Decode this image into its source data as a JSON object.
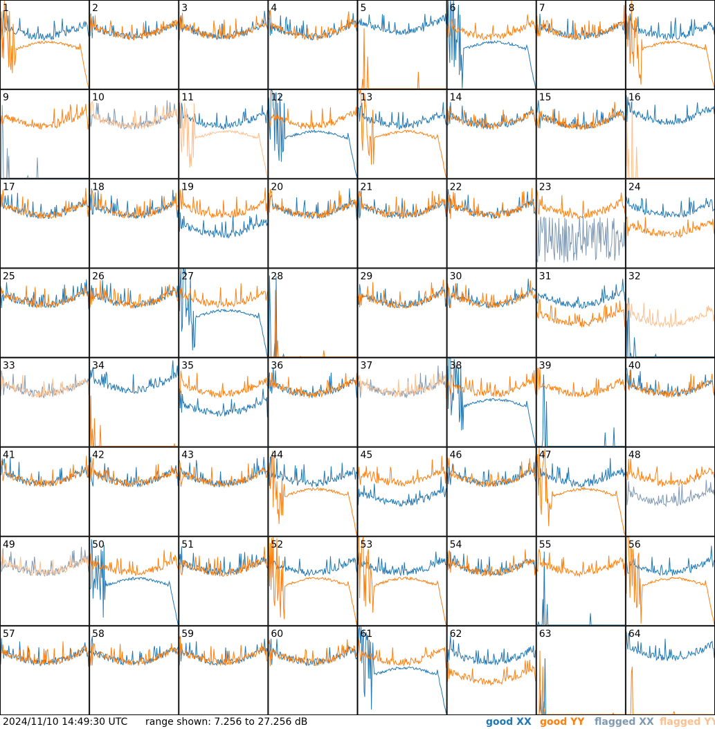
{
  "footer": {
    "timestamp": "2024/11/10 14:49:30 UTC",
    "range_text": "range shown: 7.256 to 27.256 dB"
  },
  "legend": {
    "good_xx": "good XX",
    "good_yy": "good YY",
    "flagged_xx": "flagged XX",
    "flagged_yy": "flagged YY"
  },
  "colors": {
    "good_xx": "#1f77b4",
    "good_yy": "#ff7f0e",
    "flagged_xx": "#7f99b2",
    "flagged_yy": "#ffbf8c",
    "grid": "#000000",
    "background": "#ffffff"
  },
  "chart_data": {
    "type": "line",
    "layout": "8x8 small multiples",
    "ylim": [
      7.256,
      27.256
    ],
    "yunit": "dB",
    "panels": [
      {
        "label": "1",
        "xx": "good",
        "yy": "good",
        "xx_kind": "normal",
        "yy_kind": "arch"
      },
      {
        "label": "2",
        "xx": "good",
        "yy": "good",
        "xx_kind": "normal",
        "yy_kind": "normal"
      },
      {
        "label": "3",
        "xx": "good",
        "yy": "good",
        "xx_kind": "normal",
        "yy_kind": "normal"
      },
      {
        "label": "4",
        "xx": "good",
        "yy": "good",
        "xx_kind": "normal",
        "yy_kind": "normal"
      },
      {
        "label": "5",
        "xx": "good",
        "yy": "good",
        "xx_kind": "high",
        "yy_kind": "dead"
      },
      {
        "label": "6",
        "xx": "good",
        "yy": "good",
        "xx_kind": "arch",
        "yy_kind": "normal"
      },
      {
        "label": "7",
        "xx": "good",
        "yy": "good",
        "xx_kind": "normal",
        "yy_kind": "normal"
      },
      {
        "label": "8",
        "xx": "good",
        "yy": "good",
        "xx_kind": "normal",
        "yy_kind": "arch"
      },
      {
        "label": "9",
        "xx": "flagged",
        "yy": "good",
        "xx_kind": "dead",
        "yy_kind": "normal"
      },
      {
        "label": "10",
        "xx": "flagged",
        "yy": "flagged",
        "xx_kind": "normal",
        "yy_kind": "normal"
      },
      {
        "label": "11",
        "xx": "good",
        "yy": "flagged",
        "xx_kind": "normal",
        "yy_kind": "arch"
      },
      {
        "label": "12",
        "xx": "good",
        "yy": "good",
        "xx_kind": "arch",
        "yy_kind": "normal"
      },
      {
        "label": "13",
        "xx": "good",
        "yy": "good",
        "xx_kind": "normal",
        "yy_kind": "arch"
      },
      {
        "label": "14",
        "xx": "good",
        "yy": "good",
        "xx_kind": "normal",
        "yy_kind": "normal"
      },
      {
        "label": "15",
        "xx": "good",
        "yy": "good",
        "xx_kind": "normal",
        "yy_kind": "normal"
      },
      {
        "label": "16",
        "xx": "good",
        "yy": "flagged",
        "xx_kind": "high",
        "yy_kind": "dead"
      },
      {
        "label": "17",
        "xx": "good",
        "yy": "good",
        "xx_kind": "normal",
        "yy_kind": "normal"
      },
      {
        "label": "18",
        "xx": "good",
        "yy": "good",
        "xx_kind": "normal",
        "yy_kind": "normal"
      },
      {
        "label": "19",
        "xx": "good",
        "yy": "good",
        "xx_kind": "low",
        "yy_kind": "normal"
      },
      {
        "label": "20",
        "xx": "good",
        "yy": "good",
        "xx_kind": "normal",
        "yy_kind": "normal"
      },
      {
        "label": "21",
        "xx": "good",
        "yy": "good",
        "xx_kind": "normal",
        "yy_kind": "normal"
      },
      {
        "label": "22",
        "xx": "good",
        "yy": "good",
        "xx_kind": "normal",
        "yy_kind": "normal"
      },
      {
        "label": "23",
        "xx": "flagged",
        "yy": "good",
        "xx_kind": "noisy",
        "yy_kind": "normal"
      },
      {
        "label": "24",
        "xx": "good",
        "yy": "good",
        "xx_kind": "normal",
        "yy_kind": "low"
      },
      {
        "label": "25",
        "xx": "good",
        "yy": "good",
        "xx_kind": "normal",
        "yy_kind": "normal"
      },
      {
        "label": "26",
        "xx": "good",
        "yy": "good",
        "xx_kind": "normal",
        "yy_kind": "normal"
      },
      {
        "label": "27",
        "xx": "good",
        "yy": "good",
        "xx_kind": "arch",
        "yy_kind": "normal"
      },
      {
        "label": "28",
        "xx": "good",
        "yy": "good",
        "xx_kind": "dead",
        "yy_kind": "dead"
      },
      {
        "label": "29",
        "xx": "good",
        "yy": "good",
        "xx_kind": "normal",
        "yy_kind": "normal"
      },
      {
        "label": "30",
        "xx": "good",
        "yy": "good",
        "xx_kind": "normal",
        "yy_kind": "normal"
      },
      {
        "label": "31",
        "xx": "good",
        "yy": "good",
        "xx_kind": "normal",
        "yy_kind": "low"
      },
      {
        "label": "32",
        "xx": "good",
        "yy": "flagged",
        "xx_kind": "dead",
        "yy_kind": "low"
      },
      {
        "label": "33",
        "xx": "flagged",
        "yy": "flagged",
        "xx_kind": "normal",
        "yy_kind": "normal"
      },
      {
        "label": "34",
        "xx": "good",
        "yy": "good",
        "xx_kind": "high",
        "yy_kind": "dead"
      },
      {
        "label": "35",
        "xx": "good",
        "yy": "good",
        "xx_kind": "low",
        "yy_kind": "normal"
      },
      {
        "label": "36",
        "xx": "good",
        "yy": "good",
        "xx_kind": "normal",
        "yy_kind": "normal"
      },
      {
        "label": "37",
        "xx": "flagged",
        "yy": "flagged",
        "xx_kind": "normal",
        "yy_kind": "normal"
      },
      {
        "label": "38",
        "xx": "good",
        "yy": "good",
        "xx_kind": "arch",
        "yy_kind": "normal"
      },
      {
        "label": "39",
        "xx": "good",
        "yy": "good",
        "xx_kind": "dead",
        "yy_kind": "normal"
      },
      {
        "label": "40",
        "xx": "good",
        "yy": "good",
        "xx_kind": "normal",
        "yy_kind": "normal"
      },
      {
        "label": "41",
        "xx": "good",
        "yy": "good",
        "xx_kind": "normal",
        "yy_kind": "normal"
      },
      {
        "label": "42",
        "xx": "good",
        "yy": "good",
        "xx_kind": "normal",
        "yy_kind": "normal"
      },
      {
        "label": "43",
        "xx": "good",
        "yy": "good",
        "xx_kind": "normal",
        "yy_kind": "normal"
      },
      {
        "label": "44",
        "xx": "good",
        "yy": "good",
        "xx_kind": "normal",
        "yy_kind": "arch"
      },
      {
        "label": "45",
        "xx": "good",
        "yy": "good",
        "xx_kind": "low",
        "yy_kind": "normal"
      },
      {
        "label": "46",
        "xx": "good",
        "yy": "good",
        "xx_kind": "normal",
        "yy_kind": "normal"
      },
      {
        "label": "47",
        "xx": "good",
        "yy": "good",
        "xx_kind": "normal",
        "yy_kind": "arch"
      },
      {
        "label": "48",
        "xx": "flagged",
        "yy": "good",
        "xx_kind": "low",
        "yy_kind": "normal"
      },
      {
        "label": "49",
        "xx": "flagged",
        "yy": "flagged",
        "xx_kind": "normal",
        "yy_kind": "normal"
      },
      {
        "label": "50",
        "xx": "good",
        "yy": "good",
        "xx_kind": "arch",
        "yy_kind": "normal"
      },
      {
        "label": "51",
        "xx": "good",
        "yy": "good",
        "xx_kind": "normal",
        "yy_kind": "normal"
      },
      {
        "label": "52",
        "xx": "good",
        "yy": "good",
        "xx_kind": "normal",
        "yy_kind": "arch"
      },
      {
        "label": "53",
        "xx": "good",
        "yy": "good",
        "xx_kind": "normal",
        "yy_kind": "arch"
      },
      {
        "label": "54",
        "xx": "good",
        "yy": "good",
        "xx_kind": "normal",
        "yy_kind": "normal"
      },
      {
        "label": "55",
        "xx": "good",
        "yy": "good",
        "xx_kind": "dead",
        "yy_kind": "normal"
      },
      {
        "label": "56",
        "xx": "good",
        "yy": "good",
        "xx_kind": "normal",
        "yy_kind": "arch"
      },
      {
        "label": "57",
        "xx": "good",
        "yy": "good",
        "xx_kind": "normal",
        "yy_kind": "normal"
      },
      {
        "label": "58",
        "xx": "good",
        "yy": "good",
        "xx_kind": "normal",
        "yy_kind": "normal"
      },
      {
        "label": "59",
        "xx": "good",
        "yy": "good",
        "xx_kind": "normal",
        "yy_kind": "normal"
      },
      {
        "label": "60",
        "xx": "good",
        "yy": "good",
        "xx_kind": "normal",
        "yy_kind": "normal"
      },
      {
        "label": "61",
        "xx": "good",
        "yy": "good",
        "xx_kind": "arch",
        "yy_kind": "normal"
      },
      {
        "label": "62",
        "xx": "good",
        "yy": "good",
        "xx_kind": "normal",
        "yy_kind": "low"
      },
      {
        "label": "63",
        "xx": "good",
        "yy": "good",
        "xx_kind": "dead",
        "yy_kind": "dead"
      },
      {
        "label": "64",
        "xx": "good",
        "yy": "good",
        "xx_kind": "high",
        "yy_kind": "dead"
      }
    ]
  }
}
